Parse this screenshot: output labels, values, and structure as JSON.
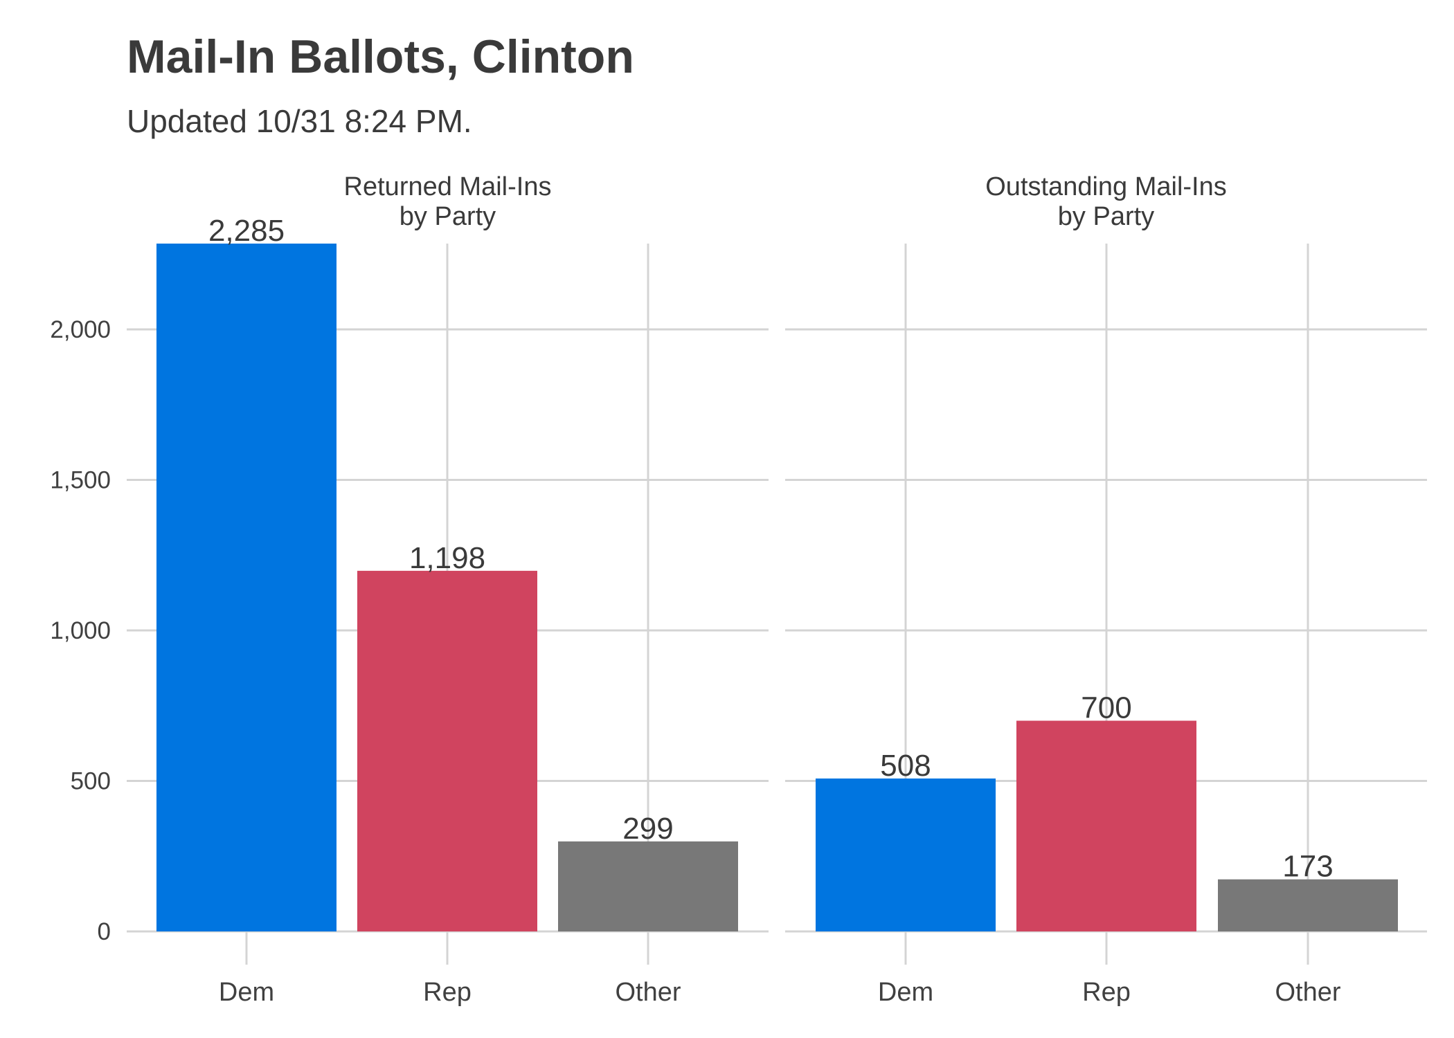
{
  "title": "Mail-In Ballots, Clinton",
  "subtitle": "Updated 10/31 8:24 PM.",
  "chart_data": {
    "type": "bar",
    "y_ticks": [
      0,
      500,
      1000,
      1500,
      2000
    ],
    "y_tick_labels": [
      "0",
      "500",
      "1,000",
      "1,500",
      "2,000"
    ],
    "ylim": [
      0,
      2285
    ],
    "grid": true,
    "legend": "none",
    "panels": [
      {
        "title_lines": [
          "Returned Mail-Ins",
          "by Party"
        ],
        "categories": [
          "Dem",
          "Rep",
          "Other"
        ],
        "values": [
          2285,
          1198,
          299
        ],
        "value_labels": [
          "2,285",
          "1,198",
          "299"
        ],
        "colors": [
          "#0075e0",
          "#d0445f",
          "#787878"
        ]
      },
      {
        "title_lines": [
          "Outstanding Mail-Ins",
          "by Party"
        ],
        "categories": [
          "Dem",
          "Rep",
          "Other"
        ],
        "values": [
          508,
          700,
          173
        ],
        "value_labels": [
          "508",
          "700",
          "173"
        ],
        "colors": [
          "#0075e0",
          "#d0445f",
          "#787878"
        ]
      }
    ]
  }
}
